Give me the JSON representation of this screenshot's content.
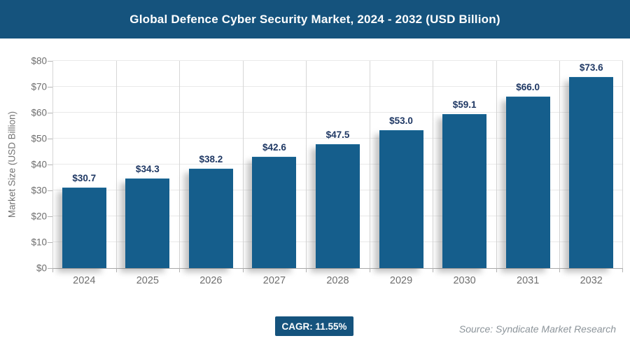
{
  "header": {
    "title": "Global Defence Cyber Security Market, 2024 - 2032 (USD Billion)"
  },
  "chart_data": {
    "type": "bar",
    "title": "Global Defence Cyber Security Market, 2024 - 2032 (USD Billion)",
    "categories": [
      "2024",
      "2025",
      "2026",
      "2027",
      "2028",
      "2029",
      "2030",
      "2031",
      "2032"
    ],
    "values": [
      30.7,
      34.3,
      38.2,
      42.6,
      47.5,
      53.0,
      59.1,
      66.0,
      73.6
    ],
    "value_labels": [
      "$30.7",
      "$34.3",
      "$38.2",
      "$42.6",
      "$47.5",
      "$53.0",
      "$59.1",
      "$66.0",
      "$73.6"
    ],
    "xlabel": "",
    "ylabel": "Market Size (USD Billion)",
    "ylim": [
      0,
      80
    ],
    "ytick_step": 10,
    "ytick_labels": [
      "$0",
      "$10",
      "$20",
      "$30",
      "$40",
      "$50",
      "$60",
      "$70",
      "$80"
    ],
    "grid": true,
    "legend": "none",
    "bar_color": "#155E8C",
    "value_label_color": "#1F3864",
    "header_bg_color": "#15537D"
  },
  "footer": {
    "cagr_label": "CAGR: 11.55%",
    "source": "Source: Syndicate Market Research"
  }
}
